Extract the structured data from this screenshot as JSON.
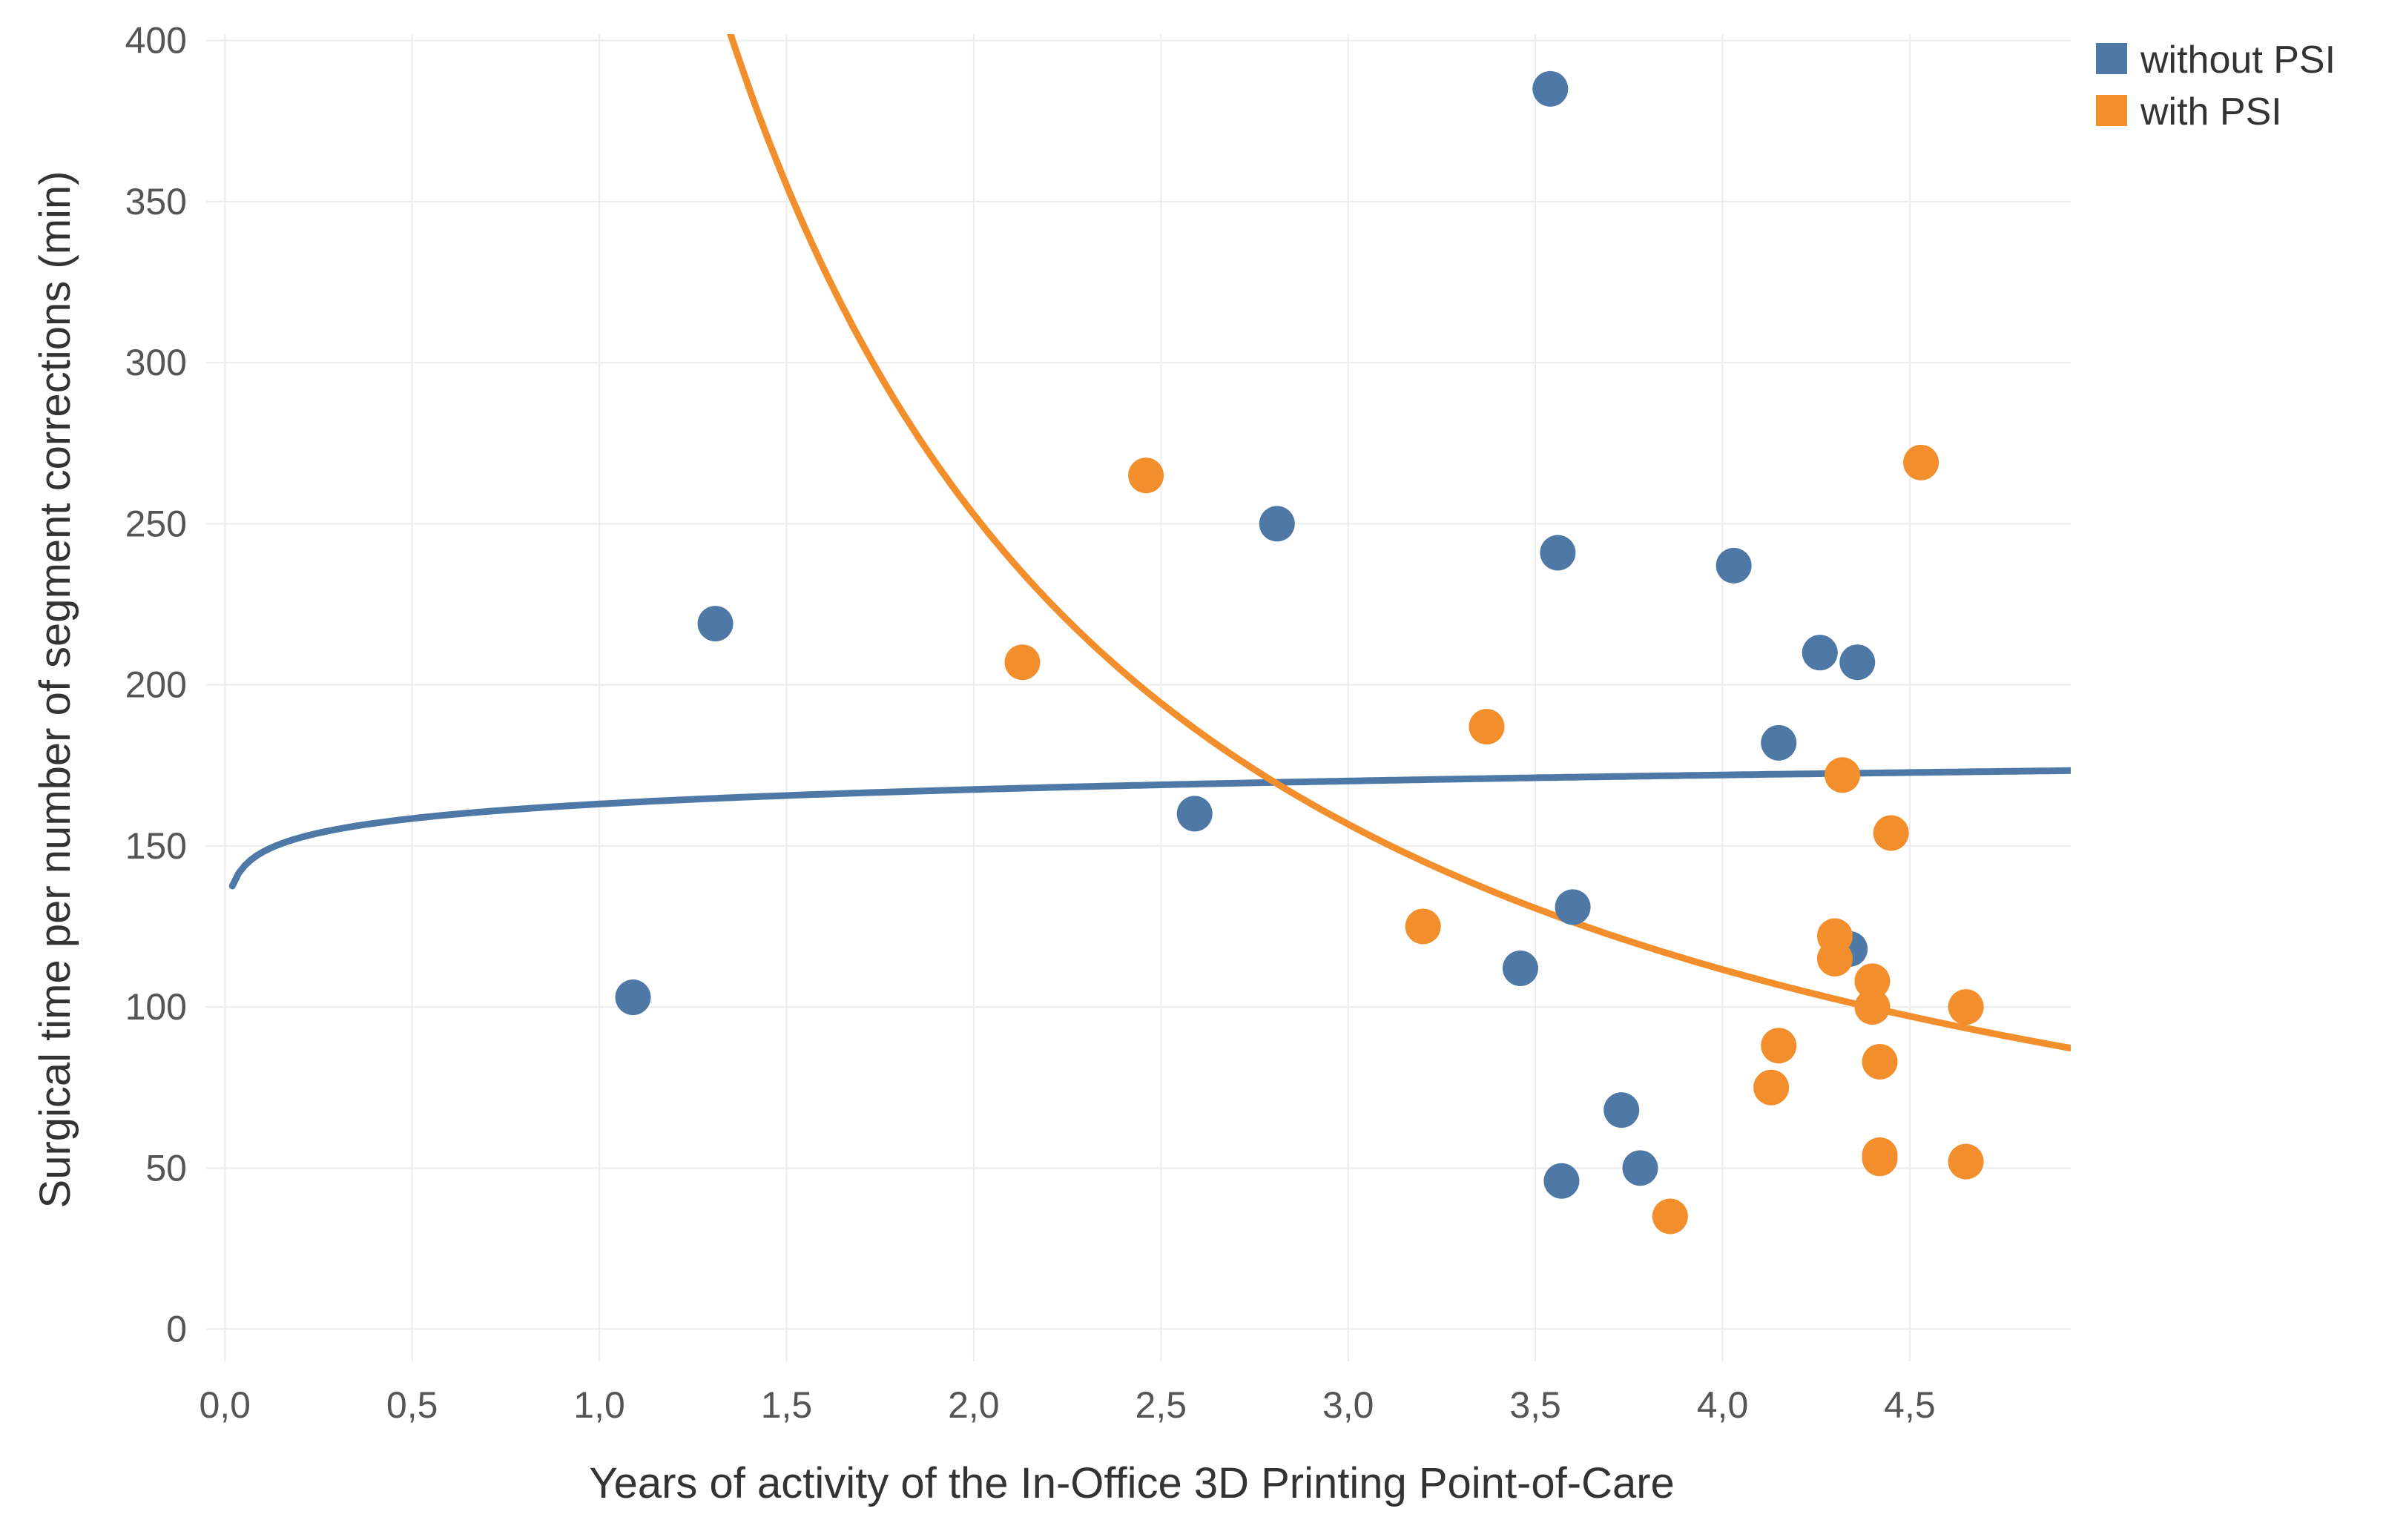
{
  "chart_data": {
    "type": "scatter",
    "title": "",
    "xlabel": "Years of activity of the In-Office 3D Printing Point-of-Care",
    "ylabel": "Surgical time per number of segment corrections (min)",
    "xlim": [
      -0.05,
      4.93
    ],
    "ylim": [
      -10,
      402
    ],
    "x_ticks": [
      0,
      0.5,
      1.0,
      1.5,
      2.0,
      2.5,
      3.0,
      3.5,
      4.0,
      4.5
    ],
    "x_tick_labels": [
      "0,0",
      "0,5",
      "1,0",
      "1,5",
      "2,0",
      "2,5",
      "3,0",
      "3,5",
      "4,0",
      "4,5"
    ],
    "y_ticks": [
      0,
      50,
      100,
      150,
      200,
      250,
      300,
      350,
      400
    ],
    "y_tick_labels": [
      "0",
      "50",
      "100",
      "150",
      "200",
      "250",
      "300",
      "350",
      "400"
    ],
    "grid": true,
    "legend_position": "top-right",
    "series": [
      {
        "name": "without PSI",
        "color": "#4e79a7",
        "points": [
          {
            "x": 1.09,
            "y": 103
          },
          {
            "x": 1.31,
            "y": 219
          },
          {
            "x": 2.59,
            "y": 160
          },
          {
            "x": 2.81,
            "y": 250
          },
          {
            "x": 3.46,
            "y": 112
          },
          {
            "x": 3.54,
            "y": 385
          },
          {
            "x": 3.56,
            "y": 241
          },
          {
            "x": 3.57,
            "y": 46
          },
          {
            "x": 3.6,
            "y": 131
          },
          {
            "x": 3.73,
            "y": 68
          },
          {
            "x": 3.78,
            "y": 50
          },
          {
            "x": 4.03,
            "y": 237
          },
          {
            "x": 4.15,
            "y": 182
          },
          {
            "x": 4.26,
            "y": 210
          },
          {
            "x": 4.34,
            "y": 118
          },
          {
            "x": 4.36,
            "y": 207
          }
        ],
        "trend": {
          "type": "logarithmic",
          "a": 163,
          "b": 6.5,
          "x_from": 0.02,
          "x_to": 4.93
        }
      },
      {
        "name": "with PSI",
        "color": "#f28e2b",
        "points": [
          {
            "x": 2.13,
            "y": 207
          },
          {
            "x": 2.46,
            "y": 265
          },
          {
            "x": 3.2,
            "y": 125
          },
          {
            "x": 3.37,
            "y": 187
          },
          {
            "x": 3.86,
            "y": 35
          },
          {
            "x": 4.13,
            "y": 75
          },
          {
            "x": 4.15,
            "y": 88
          },
          {
            "x": 4.3,
            "y": 122
          },
          {
            "x": 4.3,
            "y": 115
          },
          {
            "x": 4.32,
            "y": 172
          },
          {
            "x": 4.4,
            "y": 108
          },
          {
            "x": 4.4,
            "y": 100
          },
          {
            "x": 4.42,
            "y": 83
          },
          {
            "x": 4.42,
            "y": 53
          },
          {
            "x": 4.42,
            "y": 54
          },
          {
            "x": 4.45,
            "y": 154
          },
          {
            "x": 4.53,
            "y": 269
          },
          {
            "x": 4.65,
            "y": 52
          },
          {
            "x": 4.65,
            "y": 100
          }
        ],
        "trend": {
          "type": "power",
          "a": 573,
          "b": -1.18,
          "x_from": 0.72,
          "x_to": 4.93
        }
      }
    ]
  }
}
